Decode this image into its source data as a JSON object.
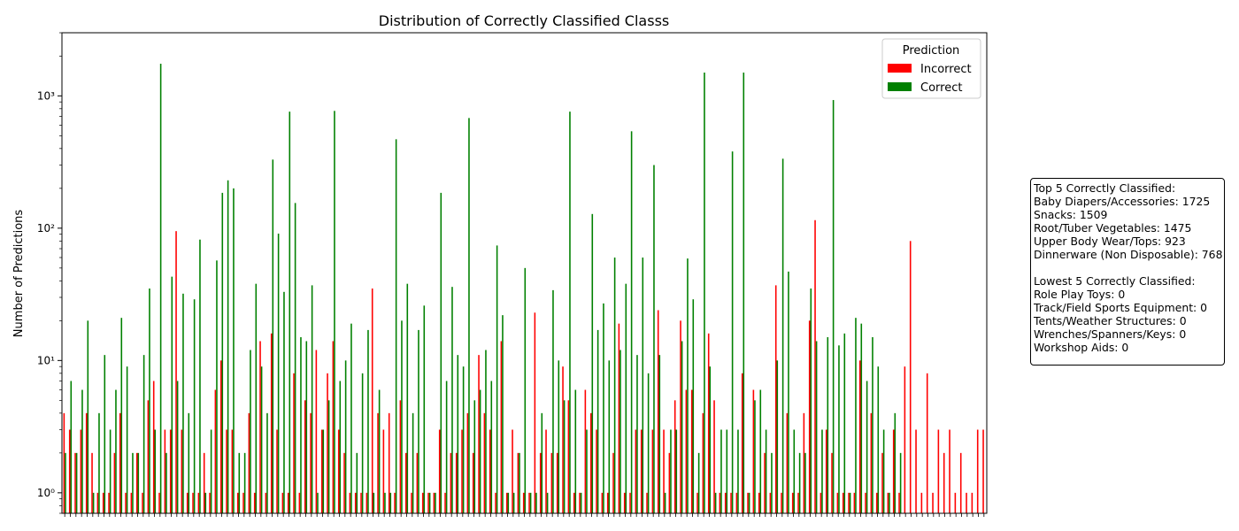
{
  "colors": {
    "incorrect": "#ff0000",
    "correct": "#008000"
  },
  "summary": {
    "top_heading": "Top 5 Correctly Classified:",
    "top": [
      "Baby Diapers/Accessories: 1725",
      "Snacks: 1509",
      "Root/Tuber Vegetables: 1475",
      "Upper Body Wear/Tops: 923",
      "Dinnerware (Non Disposable): 768"
    ],
    "low_heading": "Lowest 5 Correctly Classified:",
    "low": [
      "Role Play Toys: 0",
      "Track/Field Sports Equipment: 0",
      "Tents/Weather Structures: 0",
      "Wrenches/Spanners/Keys: 0",
      "Workshop Aids: 0"
    ]
  },
  "chart_data": {
    "type": "bar",
    "title": "Distribution of Correctly Classified Classs",
    "xlabel": "",
    "ylabel": "Number of Predictions",
    "yscale": "log",
    "ylim": [
      0.7,
      3000
    ],
    "yticks": [
      1,
      10,
      100,
      1000
    ],
    "ytick_labels": [
      "10⁰",
      "10¹",
      "10²",
      "10³"
    ],
    "legend": {
      "title": "Prediction",
      "position": "top-right",
      "entries": [
        "Incorrect",
        "Correct"
      ]
    },
    "grid": false,
    "categories_shown": false,
    "series": [
      {
        "name": "Incorrect",
        "color": "#ff0000",
        "values": [
          4,
          3,
          2,
          3,
          4,
          2,
          1,
          1,
          1,
          2,
          4,
          1,
          1,
          2,
          1,
          5,
          7,
          1,
          3,
          3,
          95,
          3,
          1,
          1,
          1,
          2,
          1,
          6,
          10,
          3,
          3,
          1,
          1,
          4,
          1,
          14,
          1,
          16,
          3,
          1,
          1,
          8,
          1,
          5,
          4,
          12,
          3,
          8,
          14,
          3,
          2,
          1,
          1,
          1,
          1,
          35,
          4,
          3,
          4,
          1,
          5,
          2,
          1,
          2,
          1,
          1,
          1,
          3,
          1,
          2,
          2,
          3,
          4,
          2,
          11,
          4,
          3,
          1,
          14,
          1,
          3,
          2,
          1,
          1,
          23,
          2,
          3,
          2,
          2,
          9,
          5,
          1,
          1,
          6,
          4,
          3,
          1,
          1,
          2,
          19,
          1,
          1,
          3,
          3,
          1,
          3,
          24,
          3,
          2,
          5,
          20,
          6,
          6,
          1,
          4,
          16,
          5,
          1,
          1,
          1,
          1,
          8,
          1,
          6,
          1,
          2,
          1,
          37,
          1,
          4,
          1,
          1,
          4,
          20,
          115,
          1,
          3,
          2,
          1,
          1,
          1,
          1,
          10,
          1,
          4,
          1,
          2,
          1,
          3,
          1,
          9,
          80,
          3,
          1,
          8,
          1,
          3,
          2,
          3,
          1,
          2,
          1,
          1,
          3,
          3
        ]
      },
      {
        "name": "Correct",
        "color": "#008000",
        "values": [
          2,
          7,
          2,
          6,
          20,
          1,
          4,
          11,
          3,
          6,
          21,
          9,
          2,
          2,
          11,
          35,
          3,
          1750,
          2,
          43,
          7,
          32,
          4,
          29,
          82,
          1,
          3,
          57,
          185,
          230,
          200,
          2,
          2,
          12,
          38,
          9,
          4,
          330,
          91,
          33,
          760,
          155,
          15,
          14,
          37,
          1,
          3,
          5,
          770,
          7,
          10,
          19,
          2,
          8,
          17,
          1,
          6,
          1,
          1,
          470,
          20,
          38,
          4,
          17,
          26,
          1,
          1,
          185,
          7,
          36,
          11,
          9,
          680,
          5,
          6,
          12,
          7,
          74,
          22,
          1,
          1,
          2,
          50,
          1,
          1,
          4,
          1,
          34,
          10,
          5,
          760,
          6,
          1,
          3,
          128,
          17,
          27,
          10,
          60,
          12,
          38,
          540,
          11,
          60,
          8,
          300,
          11,
          1,
          3,
          3,
          14,
          59,
          29,
          2,
          1500,
          9,
          1,
          3,
          3,
          380,
          3,
          1500,
          1,
          5,
          6,
          3,
          2,
          10,
          335,
          47,
          3,
          2,
          2,
          35,
          14,
          3,
          15,
          930,
          13,
          16,
          1,
          21,
          19,
          7,
          15,
          9,
          3,
          1,
          4,
          2
        ]
      }
    ]
  }
}
